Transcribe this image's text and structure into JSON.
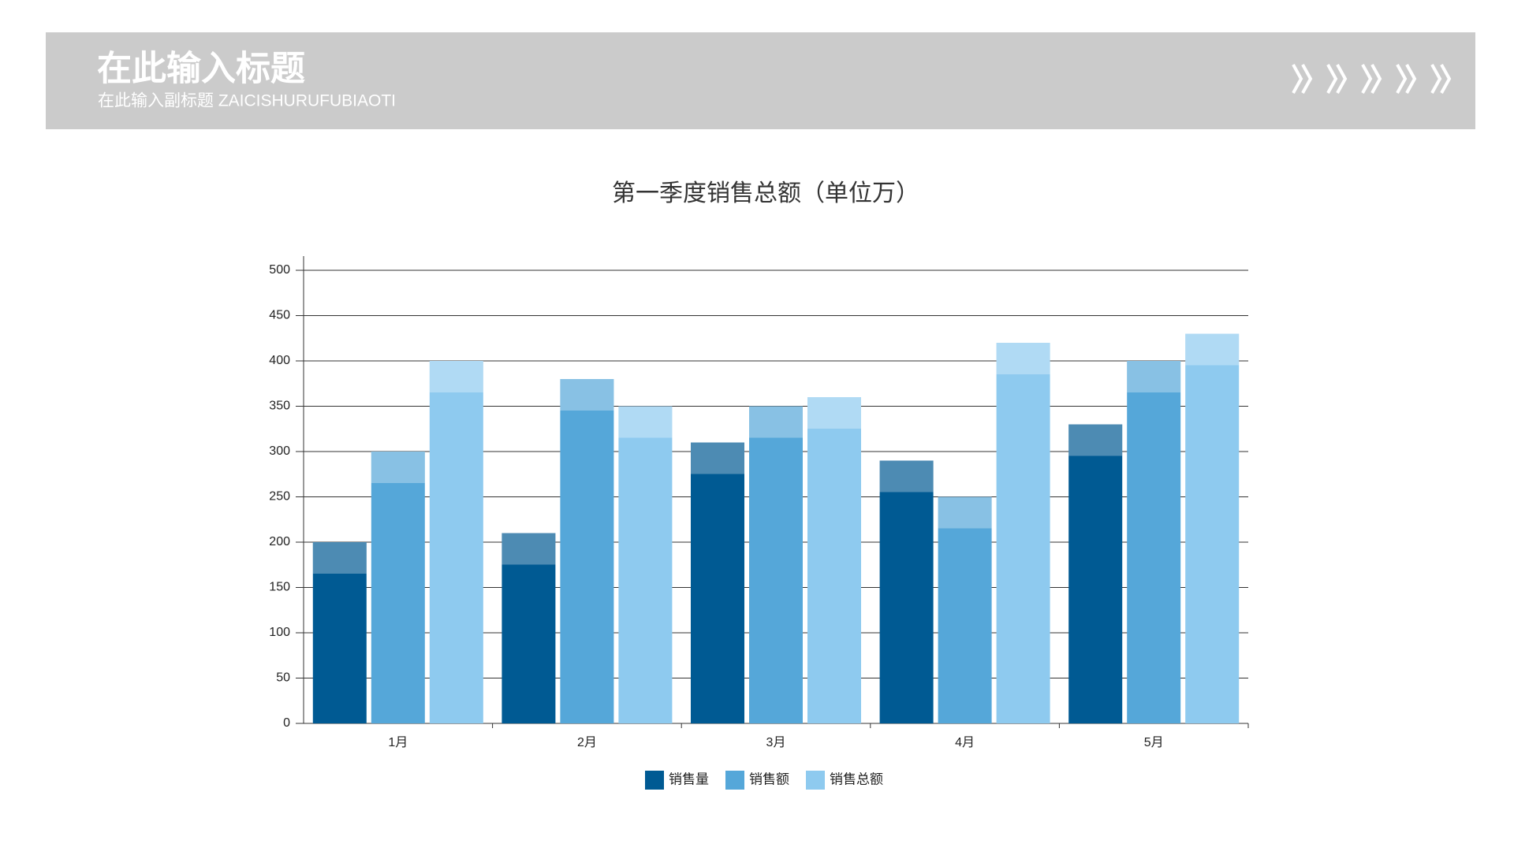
{
  "header": {
    "title": "在此输入标题",
    "subtitle": "在此输入副标题 ZAICISHURUFUBIAOTI"
  },
  "chart_data": {
    "type": "bar",
    "title": "第一季度销售总额（单位万）",
    "categories": [
      "1月",
      "2月",
      "3月",
      "4月",
      "5月"
    ],
    "series": [
      {
        "name": "销售量",
        "color": "#005a93",
        "values": [
          200,
          210,
          310,
          290,
          330
        ]
      },
      {
        "name": "销售额",
        "color": "#55a7d9",
        "values": [
          300,
          380,
          350,
          250,
          400
        ]
      },
      {
        "name": "销售总额",
        "color": "#8ecaef",
        "values": [
          400,
          350,
          360,
          420,
          430
        ]
      }
    ],
    "ylim": [
      0,
      500
    ],
    "yticks": [
      0,
      50,
      100,
      150,
      200,
      250,
      300,
      350,
      400,
      450,
      500
    ],
    "grid": true,
    "legend": "bottom"
  }
}
